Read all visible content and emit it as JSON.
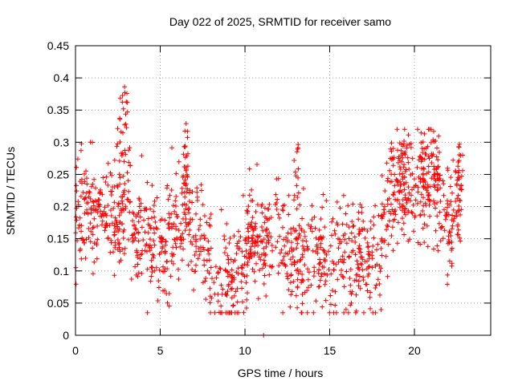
{
  "chart_data": {
    "type": "scatter",
    "title": "Day 022 of 2025, SRMTID for receiver samo",
    "xlabel": "GPS time / hours",
    "ylabel": "SRMTID / TECUs",
    "xlim": [
      0,
      24.5
    ],
    "ylim": [
      0,
      0.45
    ],
    "xticks": [
      0,
      5,
      10,
      15,
      20
    ],
    "yticks": [
      0,
      0.05,
      0.1,
      0.15,
      0.2,
      0.25,
      0.3,
      0.35,
      0.4,
      0.45
    ],
    "xtick_labels": [
      "0",
      "5",
      "10",
      "15",
      "20"
    ],
    "ytick_labels": [
      "0",
      "0.05",
      "0.1",
      "0.15",
      "0.2",
      "0.25",
      "0.3",
      "0.35",
      "0.4",
      "0.45"
    ],
    "grid": true,
    "marker": "plus",
    "marker_color": "#ff0000",
    "trend": [
      [
        0.0,
        0.17
      ],
      [
        0.5,
        0.19
      ],
      [
        1.0,
        0.18
      ],
      [
        1.5,
        0.2
      ],
      [
        2.0,
        0.19
      ],
      [
        2.5,
        0.16
      ],
      [
        3.0,
        0.21
      ],
      [
        3.5,
        0.15
      ],
      [
        4.0,
        0.17
      ],
      [
        4.5,
        0.15
      ],
      [
        5.0,
        0.13
      ],
      [
        5.5,
        0.14
      ],
      [
        6.0,
        0.17
      ],
      [
        6.5,
        0.19
      ],
      [
        7.0,
        0.15
      ],
      [
        7.5,
        0.14
      ],
      [
        8.0,
        0.11
      ],
      [
        8.5,
        0.08
      ],
      [
        9.0,
        0.08
      ],
      [
        9.5,
        0.1
      ],
      [
        10.0,
        0.12
      ],
      [
        10.5,
        0.16
      ],
      [
        11.0,
        0.15
      ],
      [
        11.5,
        0.14
      ],
      [
        12.0,
        0.15
      ],
      [
        12.5,
        0.13
      ],
      [
        13.0,
        0.11
      ],
      [
        13.5,
        0.12
      ],
      [
        14.0,
        0.13
      ],
      [
        14.5,
        0.12
      ],
      [
        15.0,
        0.11
      ],
      [
        15.5,
        0.12
      ],
      [
        16.0,
        0.11
      ],
      [
        16.5,
        0.12
      ],
      [
        17.0,
        0.13
      ],
      [
        17.5,
        0.12
      ],
      [
        18.0,
        0.13
      ],
      [
        18.5,
        0.21
      ],
      [
        19.0,
        0.22
      ],
      [
        19.5,
        0.23
      ],
      [
        20.0,
        0.21
      ],
      [
        20.5,
        0.23
      ],
      [
        21.0,
        0.24
      ],
      [
        21.5,
        0.2
      ],
      [
        22.0,
        0.19
      ],
      [
        22.5,
        0.2
      ],
      [
        22.8,
        0.21
      ]
    ],
    "peaks": [
      {
        "x": 2.6,
        "y": 0.41
      },
      {
        "x": 2.9,
        "y": 0.39
      },
      {
        "x": 6.5,
        "y": 0.33
      },
      {
        "x": 13.0,
        "y": 0.3
      },
      {
        "x": 20.5,
        "y": 0.32
      },
      {
        "x": 21.3,
        "y": 0.33
      },
      {
        "x": 19.3,
        "y": 0.31
      },
      {
        "x": 22.7,
        "y": 0.3
      }
    ],
    "outliers": [
      {
        "x": 11.1,
        "y": 0.0
      }
    ],
    "point_count": 1400,
    "x_end": 22.8
  }
}
